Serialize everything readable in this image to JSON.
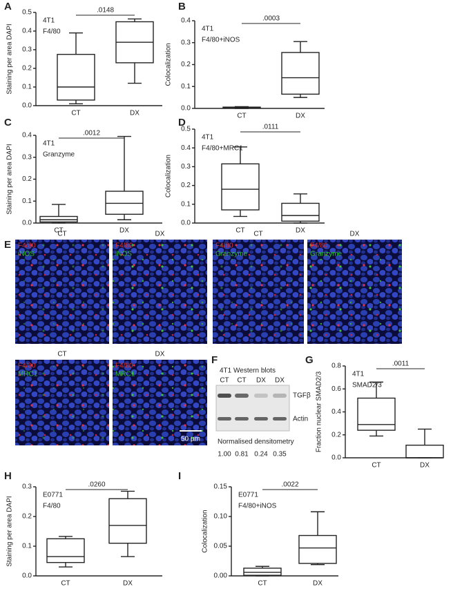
{
  "chart_data": [
    {
      "type": "box",
      "panel": "A",
      "y_label": "Staining per area DAPI",
      "annotations": [
        "4T1",
        "F4/80"
      ],
      "p_value": ".0148",
      "categories": [
        "CT",
        "DX"
      ],
      "boxes": [
        {
          "min": 0.01,
          "q1": 0.03,
          "median": 0.1,
          "q3": 0.275,
          "max": 0.39
        },
        {
          "min": 0.12,
          "q1": 0.23,
          "median": 0.34,
          "q3": 0.45,
          "max": 0.465
        }
      ],
      "ylim": [
        0,
        0.5
      ],
      "yticks": [
        {
          "value": 0,
          "label": "0.0"
        },
        0.1,
        0.2,
        0.3,
        0.4,
        0.5
      ]
    },
    {
      "type": "box",
      "panel": "B",
      "y_label": "Colocalization",
      "annotations": [
        "4T1",
        "F4/80+iNOS"
      ],
      "p_value": ".0003",
      "categories": [
        "CT",
        "DX"
      ],
      "boxes": [
        {
          "min": 0,
          "q1": 0.002,
          "median": 0.004,
          "q3": 0.006,
          "max": 0.008
        },
        {
          "min": 0.05,
          "q1": 0.065,
          "median": 0.14,
          "q3": 0.255,
          "max": 0.305
        }
      ],
      "ylim": [
        0,
        0.4
      ],
      "yticks": [
        {
          "value": 0,
          "label": "0.0"
        },
        0.1,
        0.2,
        0.3,
        0.4
      ]
    },
    {
      "type": "box",
      "panel": "C",
      "y_label": "Staining per area DAPI",
      "annotations": [
        "4T1",
        "Granzyme"
      ],
      "p_value": ".0012",
      "categories": [
        "CT",
        "DX"
      ],
      "boxes": [
        {
          "min": 0,
          "q1": 0.005,
          "median": 0.015,
          "q3": 0.03,
          "max": 0.085
        },
        {
          "min": 0.015,
          "q1": 0.04,
          "median": 0.09,
          "q3": 0.145,
          "max": 0.395
        }
      ],
      "ylim": [
        0,
        0.4
      ],
      "yticks": [
        {
          "value": 0,
          "label": "0.0"
        },
        0.1,
        0.2,
        0.3,
        0.4
      ]
    },
    {
      "type": "box",
      "panel": "D",
      "y_label": "Colocalization",
      "annotations": [
        "4T1",
        "F4/80+MRC1"
      ],
      "p_value": ".0111",
      "categories": [
        "CT",
        "DX"
      ],
      "boxes": [
        {
          "min": 0.035,
          "q1": 0.07,
          "median": 0.18,
          "q3": 0.315,
          "max": 0.405
        },
        {
          "min": 0,
          "q1": 0.01,
          "median": 0.04,
          "q3": 0.105,
          "max": 0.155
        }
      ],
      "ylim": [
        0,
        0.5
      ],
      "yticks": [
        {
          "value": 0,
          "label": "0.0"
        },
        0.1,
        0.2,
        0.3,
        0.4,
        0.5
      ]
    },
    {
      "type": "box",
      "panel": "G",
      "y_label": "Fraction nuclear SMAD2/3",
      "annotations": [
        "4T1",
        "SMAD2/3"
      ],
      "p_value": ".0011",
      "categories": [
        "CT",
        "DX"
      ],
      "boxes": [
        {
          "min": 0.19,
          "q1": 0.24,
          "median": 0.29,
          "q3": 0.52,
          "max": 0.66
        },
        {
          "min": 0,
          "q1": 0,
          "median": 0,
          "q3": 0.11,
          "max": 0.25
        }
      ],
      "ylim": [
        0,
        0.8
      ],
      "yticks": [
        {
          "value": 0,
          "label": "0.0"
        },
        0.2,
        0.4,
        0.6,
        0.8
      ]
    },
    {
      "type": "box",
      "panel": "H",
      "y_label": "Staining per area DAPI",
      "annotations": [
        "E0771",
        "F4/80"
      ],
      "p_value": ".0260",
      "categories": [
        "CT",
        "DX"
      ],
      "boxes": [
        {
          "min": 0.03,
          "q1": 0.045,
          "median": 0.065,
          "q3": 0.125,
          "max": 0.133
        },
        {
          "min": 0.065,
          "q1": 0.11,
          "median": 0.17,
          "q3": 0.26,
          "max": 0.285
        }
      ],
      "ylim": [
        0,
        0.3
      ],
      "yticks": [
        {
          "value": 0,
          "label": "0.0"
        },
        0.1,
        0.2,
        0.3
      ]
    },
    {
      "type": "box",
      "panel": "I",
      "y_label": "Colocalization",
      "annotations": [
        "E0771",
        "F4/80+iNOS"
      ],
      "p_value": ".0022",
      "categories": [
        "CT",
        "DX"
      ],
      "boxes": [
        {
          "min": 0,
          "q1": 0.001,
          "median": 0.006,
          "q3": 0.013,
          "max": 0.016
        },
        {
          "min": 0.019,
          "q1": 0.021,
          "median": 0.047,
          "q3": 0.068,
          "max": 0.108
        }
      ],
      "ylim": [
        0,
        0.15
      ],
      "yticks": [
        {
          "value": 0,
          "label": "0.00"
        },
        0.05,
        {
          "value": 0.1,
          "label": "0.10"
        },
        0.15
      ]
    }
  ],
  "micrographs": {
    "panel": "E",
    "scale_bar": "50 µm",
    "images": [
      {
        "condition": "CT",
        "stains": [
          "F4/80",
          "iNOS"
        ]
      },
      {
        "condition": "DX",
        "stains": [
          "F4/80",
          "iNOS"
        ]
      },
      {
        "condition": "CT",
        "stains": [
          "F4/80",
          "Granzyme"
        ]
      },
      {
        "condition": "DX",
        "stains": [
          "F4/80",
          "Granzyme"
        ]
      },
      {
        "condition": "CT",
        "stains": [
          "F4/80",
          "MRC1"
        ]
      },
      {
        "condition": "DX",
        "stains": [
          "F4/80",
          "MRC1"
        ]
      }
    ]
  },
  "western_blot": {
    "panel": "F",
    "title": "4T1 Western blots",
    "lanes": [
      "CT",
      "CT",
      "DX",
      "DX"
    ],
    "bands": [
      "TGFβ",
      "Actin"
    ],
    "densitometry_title": "Normalised densitometry",
    "densitometry": [
      "1.00",
      "0.81",
      "0.24",
      "0.35"
    ]
  }
}
